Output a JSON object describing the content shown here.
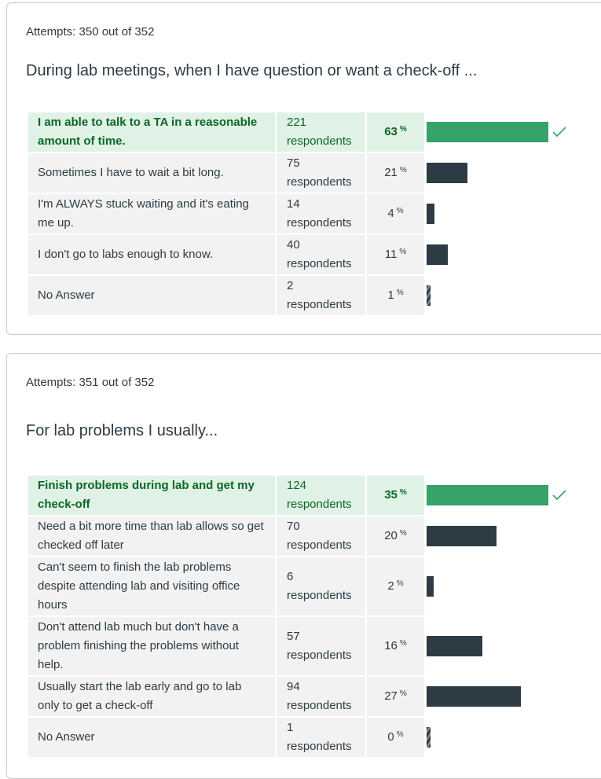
{
  "questions": [
    {
      "attempts": "Attempts: 350 out of 352",
      "question": "During lab meetings, when I have question or want a check-off ...",
      "answers": [
        {
          "text": "I am able to talk to a TA in a reasonable amount of time.",
          "respondents": "221 respondents",
          "percent": "63",
          "value": 63,
          "correct": true
        },
        {
          "text": "Sometimes I have to wait a bit long.",
          "respondents": "75 respondents",
          "percent": "21",
          "value": 21,
          "correct": false
        },
        {
          "text": "I'm ALWAYS stuck waiting and it's eating me up.",
          "respondents": "14 respondents",
          "percent": "4",
          "value": 4,
          "correct": false
        },
        {
          "text": "I don't go to labs enough to know.",
          "respondents": "40 respondents",
          "percent": "11",
          "value": 11,
          "correct": false
        },
        {
          "text": "No Answer",
          "respondents": "2 respondents",
          "percent": "1",
          "value": 1,
          "correct": false
        }
      ]
    },
    {
      "attempts": "Attempts: 351 out of 352",
      "question": "For lab problems I usually...",
      "answers": [
        {
          "text": "Finish problems during lab and get my check-off",
          "respondents": "124 respondents",
          "percent": "35",
          "value": 35,
          "correct": true
        },
        {
          "text": "Need a bit more time than lab allows so get checked off later",
          "respondents": "70 respondents",
          "percent": "20",
          "value": 20,
          "correct": false
        },
        {
          "text": "Can't seem to finish the lab problems despite attending lab and visiting office hours",
          "respondents": "6 respondents",
          "percent": "2",
          "value": 2,
          "correct": false
        },
        {
          "text": "Don't attend lab much but don't have a problem finishing the problems without help.",
          "respondents": "57 respondents",
          "percent": "16",
          "value": 16,
          "correct": false
        },
        {
          "text": "Usually start the lab early and go to lab only to get a check-off",
          "respondents": "94 respondents",
          "percent": "27",
          "value": 27,
          "correct": false
        },
        {
          "text": "No Answer",
          "respondents": "1 respondents",
          "percent": "0",
          "value": 0,
          "correct": false
        }
      ]
    }
  ],
  "percent_sign": "%",
  "icons": {
    "correct": "check-icon"
  },
  "colors": {
    "correct_bar": "#35a36a",
    "bar": "#2d3b45",
    "correct_bg": "#e0f2e6",
    "correct_text": "#0b6626"
  }
}
